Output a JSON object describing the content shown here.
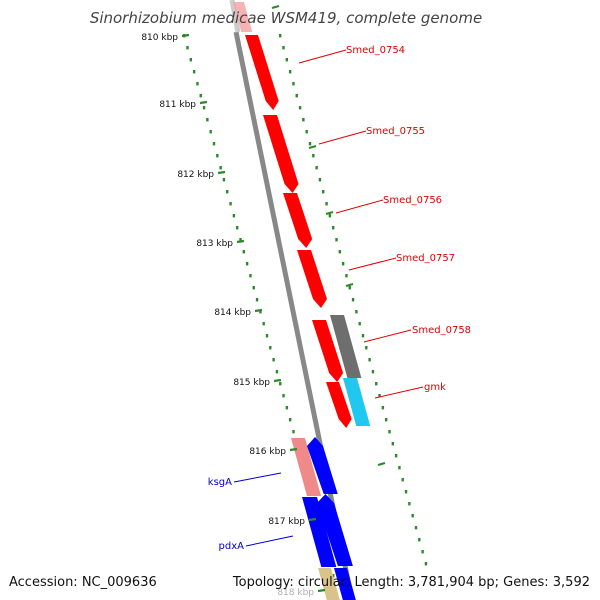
{
  "title": "Sinorhizobium medicae WSM419, complete genome",
  "footer": {
    "accession": "Accession: NC_009636",
    "summary": "Topology: circular; Length: 3,781,904 bp; Genes: 3,592"
  },
  "colors": {
    "backbone": "#888888",
    "tick": "#2a8a2a",
    "forward_gene": "#ff0000",
    "reverse_gene": "#0000ff",
    "label_forward": "#e00000",
    "label_reverse": "#0000cc"
  },
  "ticks": [
    {
      "label": "810 kbp"
    },
    {
      "label": "811 kbp"
    },
    {
      "label": "812 kbp"
    },
    {
      "label": "813 kbp"
    },
    {
      "label": "814 kbp"
    },
    {
      "label": "815 kbp"
    },
    {
      "label": "816 kbp"
    },
    {
      "label": "817 kbp"
    },
    {
      "label": "818 kbp"
    }
  ],
  "gene_labels": [
    {
      "name": "Smed_0754",
      "strand": "forward"
    },
    {
      "name": "Smed_0755",
      "strand": "forward"
    },
    {
      "name": "Smed_0756",
      "strand": "forward"
    },
    {
      "name": "Smed_0757",
      "strand": "forward"
    },
    {
      "name": "Smed_0758",
      "strand": "forward"
    },
    {
      "name": "gmk",
      "strand": "forward"
    },
    {
      "name": "ksgA",
      "strand": "reverse"
    },
    {
      "name": "pdxA",
      "strand": "reverse"
    }
  ]
}
